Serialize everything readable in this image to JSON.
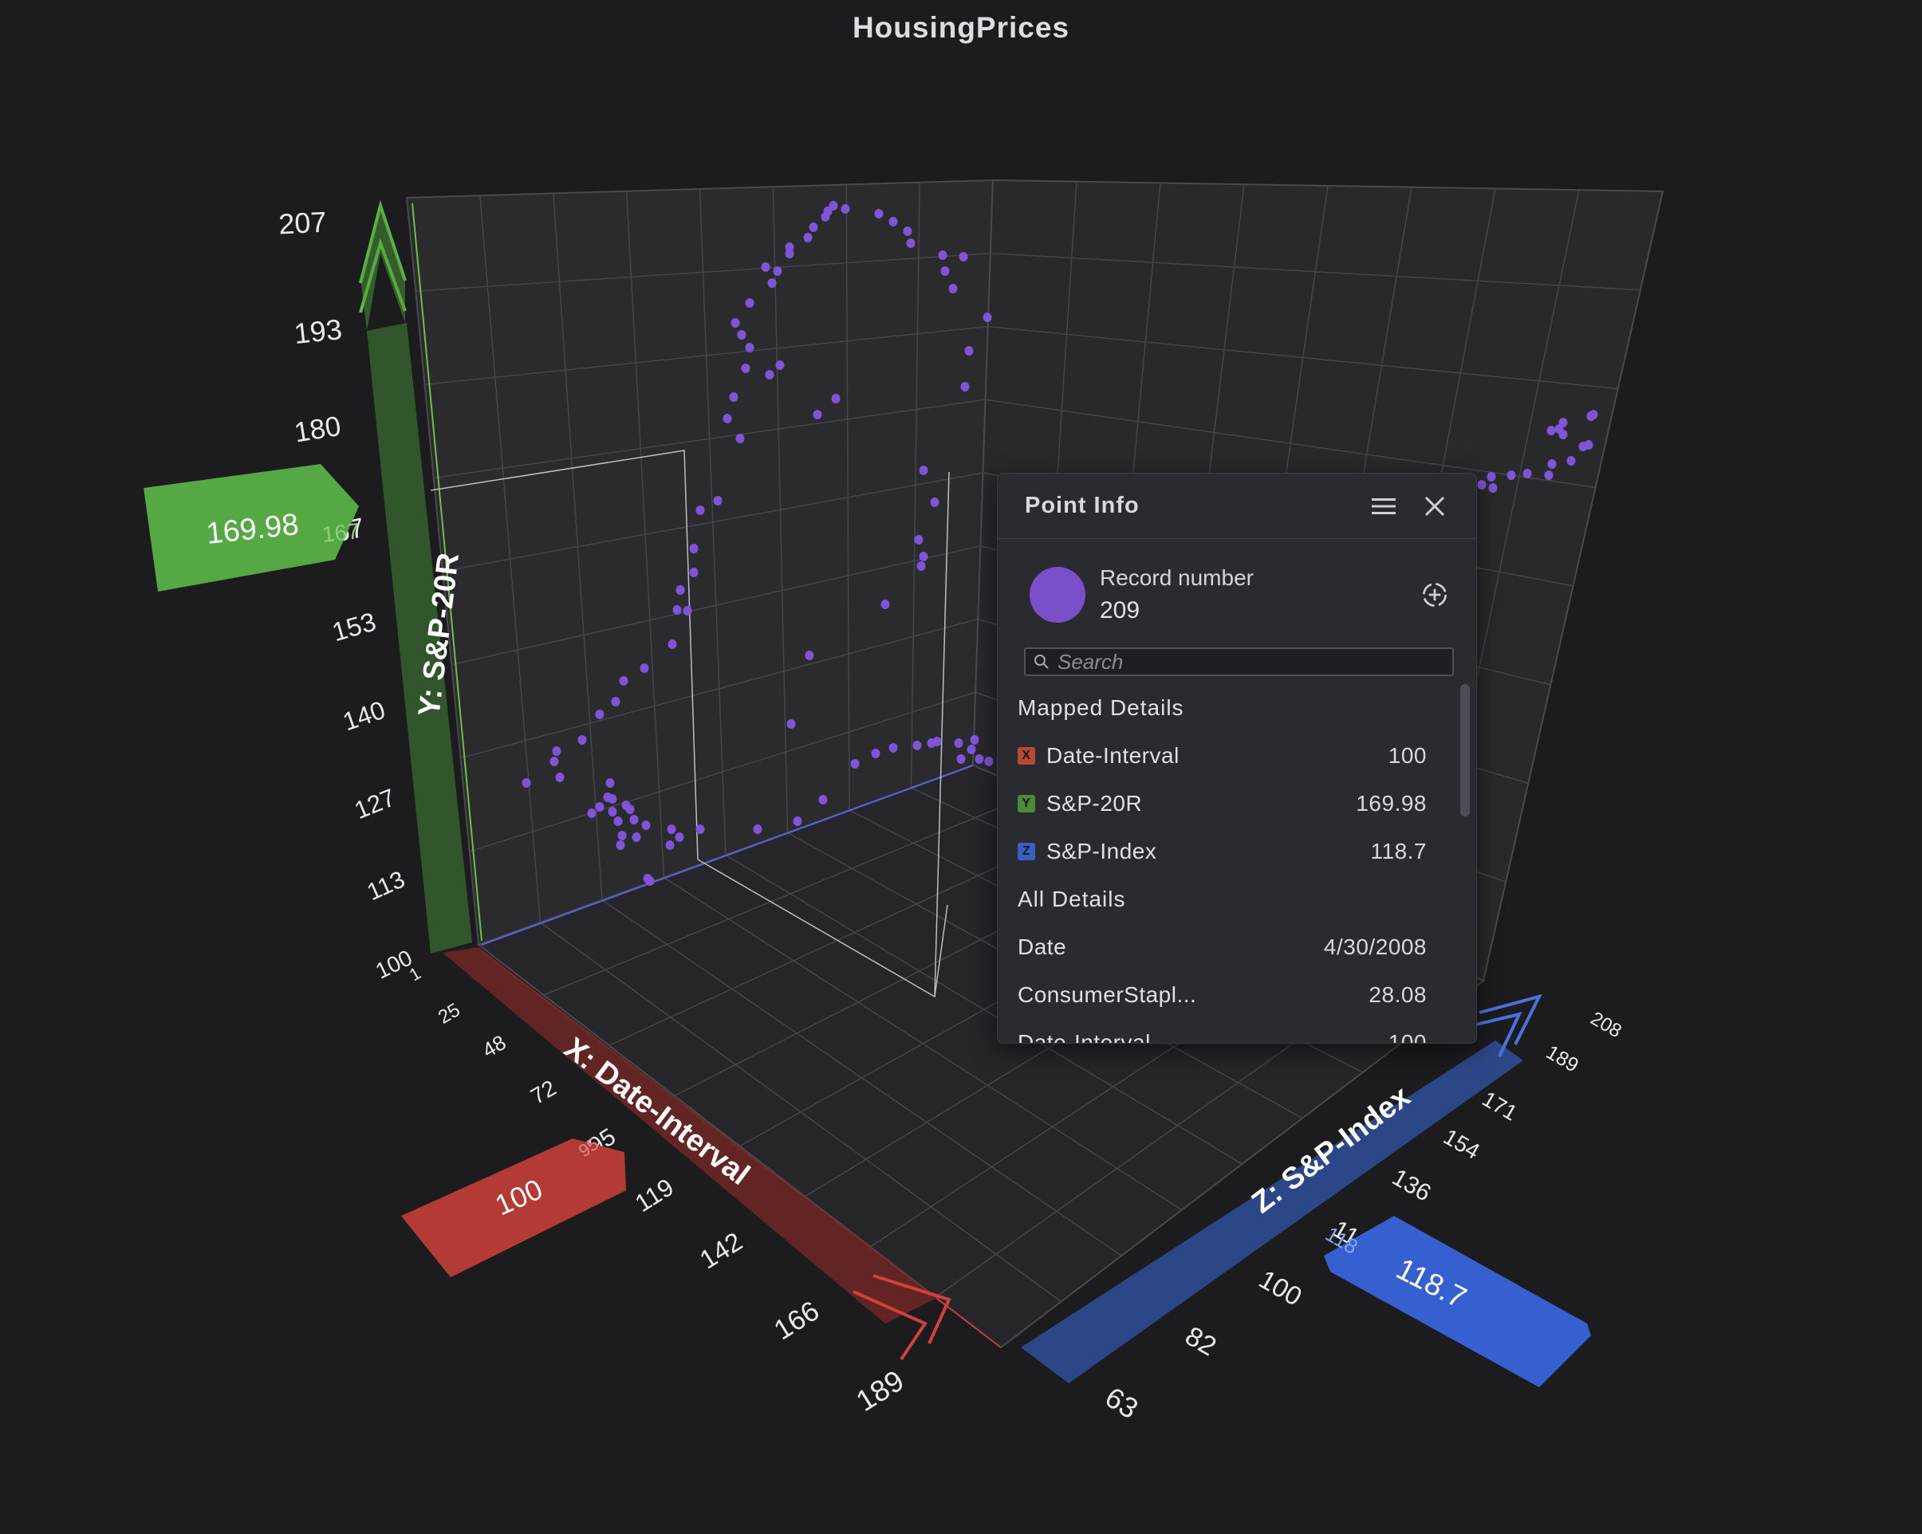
{
  "title": "HousingPrices",
  "colors": {
    "background": "#1c1c1f",
    "point": "#7b4fc9",
    "x_axis": "#b83c36",
    "y_axis": "#5aa24a",
    "z_axis": "#3a62c9"
  },
  "axes": {
    "x": {
      "title": "X: Date-Interval",
      "ticks": [
        "1",
        "25",
        "48",
        "72",
        "95",
        "119",
        "142",
        "166",
        "189"
      ],
      "badge": "100",
      "cursor_tick": "95"
    },
    "y": {
      "title": "Y: S&P-20R",
      "ticks": [
        "100",
        "113",
        "127",
        "140",
        "153",
        "167",
        "180",
        "193",
        "207"
      ],
      "badge": "169.98",
      "cursor_tick": "167"
    },
    "z": {
      "title": "Z: S&P-Index",
      "ticks": [
        "63",
        "82",
        "100",
        "118",
        "136",
        "154",
        "171",
        "189",
        "208"
      ],
      "badge": "118.7",
      "cursor_tick": "118"
    }
  },
  "chart_data": {
    "type": "scatter",
    "title": "HousingPrices",
    "x_label": "X: Date-Interval",
    "y_label": "Y: S&P-20R",
    "z_label": "Z: S&P-Index",
    "x_range": [
      1,
      189
    ],
    "y_range": [
      100,
      207
    ],
    "z_range": [
      63,
      208
    ],
    "grid": true,
    "selected_point": {
      "x": 100,
      "y": 169.98,
      "z": 118.7
    }
  },
  "panel": {
    "title": "Point Info",
    "menu_icon": "hamburger-menu-icon",
    "close_icon": "close-icon",
    "locate_icon": "crosshair-locate-icon",
    "search_icon": "search-icon",
    "record_label": "Record number",
    "record_value": "209",
    "search_placeholder": "Search",
    "mapped_title": "Mapped Details",
    "mapped": [
      {
        "tag": "X",
        "label": "Date-Interval",
        "value": "100",
        "color": "#b84a35"
      },
      {
        "tag": "Y",
        "label": "S&P-20R",
        "value": "169.98",
        "color": "#4a8a3a"
      },
      {
        "tag": "Z",
        "label": "S&P-Index",
        "value": "118.7",
        "color": "#3a5fc4"
      }
    ],
    "all_title": "All Details",
    "all": [
      {
        "label": "Date",
        "value": "4/30/2008"
      },
      {
        "label": "ConsumerStapl...",
        "value": "28.08"
      },
      {
        "label": "Date-Interval",
        "value": "100"
      }
    ]
  }
}
